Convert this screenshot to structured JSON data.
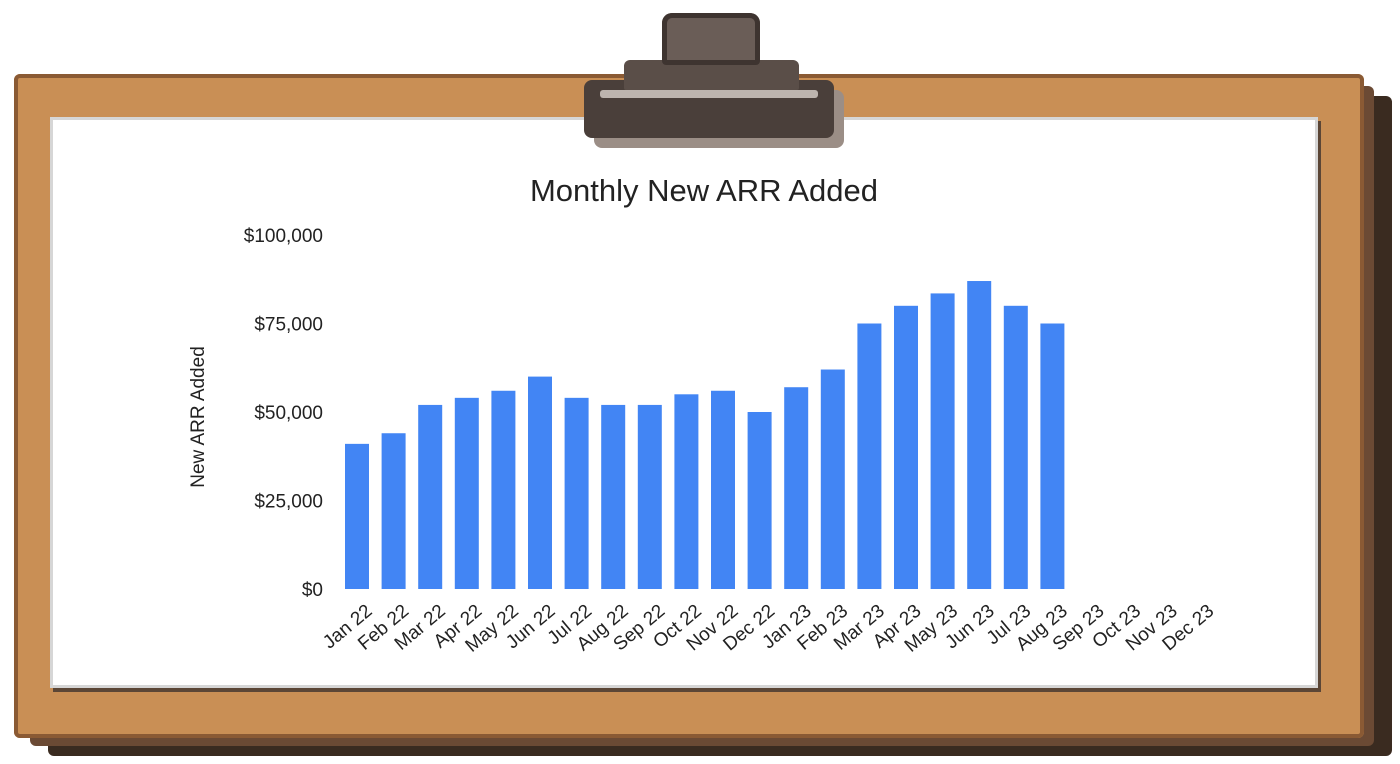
{
  "chart_data": {
    "type": "bar",
    "title": "Monthly New ARR Added",
    "xlabel": "",
    "ylabel": "New ARR Added",
    "ylim": [
      0,
      100000
    ],
    "yticks": [
      "$0",
      "$25,000",
      "$50,000",
      "$75,000",
      "$100,000"
    ],
    "ytick_values": [
      0,
      25000,
      50000,
      75000,
      100000
    ],
    "categories": [
      "Jan 22",
      "Feb 22",
      "Mar 22",
      "Apr 22",
      "May 22",
      "Jun 22",
      "Jul 22",
      "Aug 22",
      "Sep 22",
      "Oct 22",
      "Nov 22",
      "Dec 22",
      "Jan 23",
      "Feb 23",
      "Mar 23",
      "Apr 23",
      "May 23",
      "Jun 23",
      "Jul 23",
      "Aug 23",
      "Sep 23",
      "Oct 23",
      "Nov 23",
      "Dec 23"
    ],
    "values": [
      41000,
      44000,
      52000,
      54000,
      56000,
      60000,
      54000,
      52000,
      52000,
      55000,
      56000,
      50000,
      57000,
      62000,
      75000,
      80000,
      83500,
      87000,
      80000,
      75000,
      null,
      null,
      null,
      null
    ],
    "bar_color": "#4285f4",
    "grid": false,
    "legend": "none"
  }
}
